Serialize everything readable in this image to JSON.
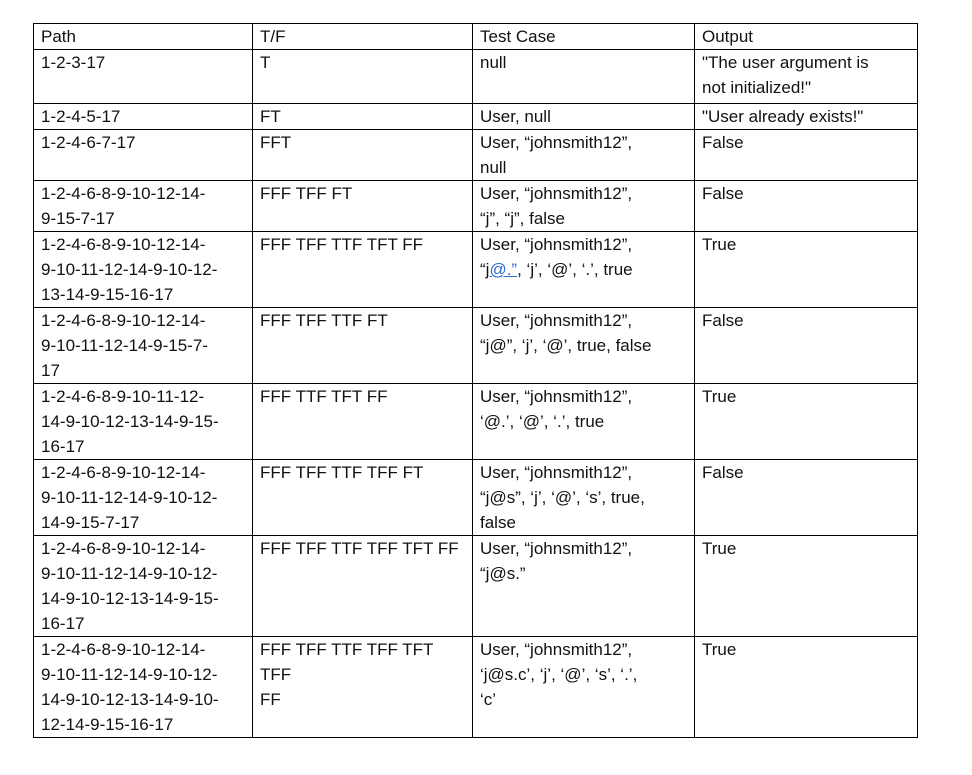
{
  "table": {
    "headers": [
      "Path",
      "T/F",
      "Test Case",
      "Output"
    ],
    "rows": [
      {
        "path": "1-2-3-17",
        "tf": "T",
        "test": "null",
        "output": "\"The user argument is\nnot initialized!\""
      },
      {
        "path": "1-2-4-5-17",
        "tf": "FT",
        "test": "User, null",
        "output": "\"User already exists!\""
      },
      {
        "path": "1-2-4-6-7-17",
        "tf": "FFT",
        "test": "User, “johnsmith12”,\nnull",
        "output": "False"
      },
      {
        "path": "1-2-4-6-8-9-10-12-14-\n9-15-7-17",
        "tf": "FFF TFF FT",
        "test": "User, “johnsmith12”,\n“j”, “j”, false",
        "output": "False"
      },
      {
        "path": "1-2-4-6-8-9-10-12-14-\n9-10-11-12-14-9-10-12-\n13-14-9-15-16-17",
        "tf": "FFF TFF TTF TFT FF",
        "test_line1": "User, “johnsmith12”,",
        "test_open": "“j",
        "test_link": "@.”",
        "test_rest": ", ‘j’, ‘@’, ‘.’, true",
        "output": "True"
      },
      {
        "path": "1-2-4-6-8-9-10-12-14-\n9-10-11-12-14-9-15-7-\n17",
        "tf": "FFF TFF TTF FT",
        "test": "User, “johnsmith12”,\n“j@”, ‘j’, ‘@’, true, false",
        "output": "False"
      },
      {
        "path": "1-2-4-6-8-9-10-11-12-\n14-9-10-12-13-14-9-15-\n16-17",
        "tf": "FFF TTF TFT FF",
        "test": "User, “johnsmith12”,\n‘@.’, ‘@’, ‘.’, true",
        "output": "True"
      },
      {
        "path": "1-2-4-6-8-9-10-12-14-\n9-10-11-12-14-9-10-12-\n14-9-15-7-17",
        "tf": "FFF TFF TTF TFF FT",
        "test": "User, “johnsmith12”,\n“j@s”, ‘j’, ‘@’, ‘s’, true,\nfalse",
        "output": "False"
      },
      {
        "path": "1-2-4-6-8-9-10-12-14-\n9-10-11-12-14-9-10-12-\n14-9-10-12-13-14-9-15-\n16-17",
        "tf": "FFF TFF TTF TFF TFT FF",
        "test": "User, “johnsmith12”,\n“j@s.”",
        "output": "True"
      },
      {
        "path": "1-2-4-6-8-9-10-12-14-\n9-10-11-12-14-9-10-12-\n14-9-10-12-13-14-9-10-\n12-14-9-15-16-17",
        "tf": "FFF TFF TTF TFF TFT TFF\nFF",
        "test": "User, “johnsmith12”,\n‘j@s.c’, ‘j’, ‘@’, ‘s’, ‘.’,\n‘c’",
        "output": "True"
      }
    ]
  }
}
